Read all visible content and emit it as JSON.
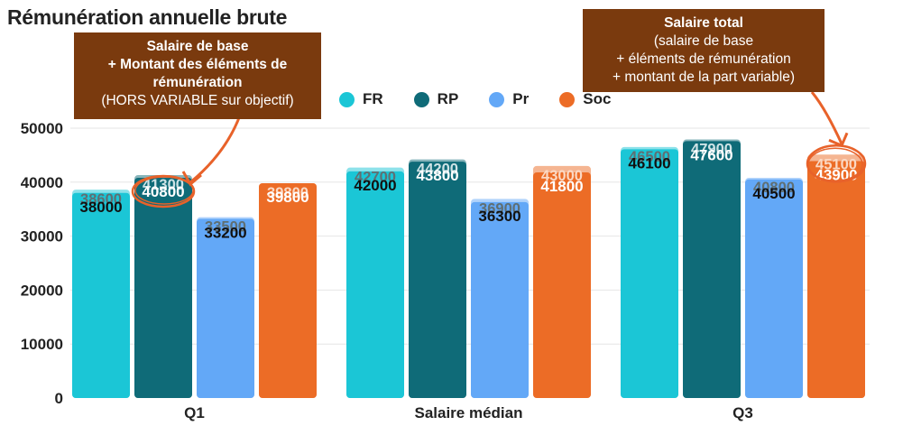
{
  "chart_data": {
    "type": "bar",
    "title": "Rémunération annuelle brute",
    "categories": [
      "Q1",
      "Salaire médian",
      "Q3"
    ],
    "ylim": [
      0,
      50000
    ],
    "yticks": [
      "0",
      "10000",
      "20000",
      "30000",
      "40000",
      "50000"
    ],
    "series": [
      {
        "name": "FR",
        "color": "#1bc6d6",
        "values": [
          38000,
          42000,
          46100
        ],
        "totals": [
          38600,
          42700,
          46500
        ]
      },
      {
        "name": "RP",
        "color": "#0f6b78",
        "values": [
          40800,
          43800,
          47600
        ],
        "totals": [
          41300,
          44200,
          47900
        ]
      },
      {
        "name": "Pr",
        "color": "#63a8f7",
        "values": [
          33200,
          36300,
          40500
        ],
        "totals": [
          33500,
          36900,
          40800
        ]
      },
      {
        "name": "Soc",
        "color": "#ec6c26",
        "values": [
          39800,
          41800,
          43900
        ],
        "totals": [
          39800,
          43000,
          45100
        ]
      }
    ],
    "annotations": [
      {
        "id": "base",
        "lines": [
          "Salaire de base",
          "+ Montant des éléments de",
          "rémunération",
          "(HORS VARIABLE sur objectif)"
        ]
      },
      {
        "id": "total",
        "lines": [
          "Salaire total",
          "(salaire de base",
          "+ éléments de rémunération",
          "+ montant de la part variable)"
        ]
      }
    ],
    "highlight_color": "#e8622a",
    "callout_color": "#7a3a0e"
  }
}
